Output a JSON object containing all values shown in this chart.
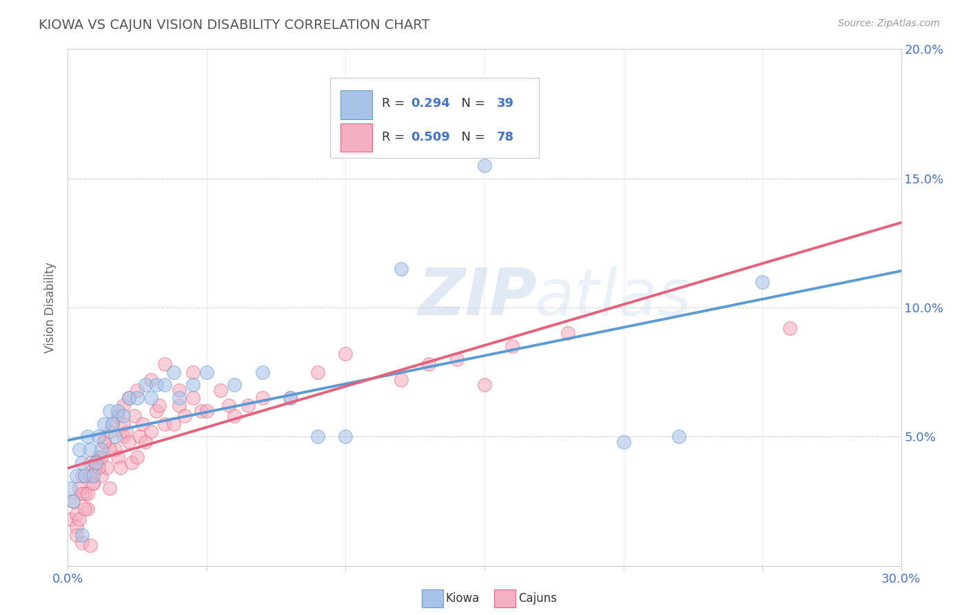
{
  "title": "KIOWA VS CAJUN VISION DISABILITY CORRELATION CHART",
  "source": "Source: ZipAtlas.com",
  "ylabel": "Vision Disability",
  "xlim": [
    0.0,
    0.3
  ],
  "ylim": [
    0.0,
    0.2
  ],
  "xticks": [
    0.0,
    0.05,
    0.1,
    0.15,
    0.2,
    0.25,
    0.3
  ],
  "yticks": [
    0.0,
    0.05,
    0.1,
    0.15,
    0.2
  ],
  "xticklabels": [
    "0.0%",
    "",
    "",
    "",
    "",
    "",
    "30.0%"
  ],
  "yticklabels_right": [
    "",
    "5.0%",
    "10.0%",
    "15.0%",
    "20.0%"
  ],
  "kiowa_color": "#aac4e8",
  "cajun_color": "#f5afc0",
  "kiowa_line_color": "#5b9bd5",
  "cajun_line_color": "#e8607a",
  "kiowa_R": 0.294,
  "kiowa_N": 39,
  "cajun_R": 0.509,
  "cajun_N": 78,
  "legend_R_color": "#4472c4",
  "background_color": "#ffffff",
  "watermark_zip": "ZIP",
  "watermark_atlas": "atlas",
  "kiowa_x": [
    0.001,
    0.002,
    0.003,
    0.004,
    0.005,
    0.006,
    0.007,
    0.008,
    0.009,
    0.01,
    0.011,
    0.012,
    0.013,
    0.015,
    0.016,
    0.017,
    0.018,
    0.02,
    0.022,
    0.025,
    0.028,
    0.03,
    0.032,
    0.035,
    0.038,
    0.04,
    0.045,
    0.05,
    0.06,
    0.07,
    0.08,
    0.09,
    0.1,
    0.12,
    0.15,
    0.2,
    0.22,
    0.25,
    0.005
  ],
  "kiowa_y": [
    0.03,
    0.025,
    0.035,
    0.045,
    0.04,
    0.035,
    0.05,
    0.045,
    0.035,
    0.04,
    0.05,
    0.045,
    0.055,
    0.06,
    0.055,
    0.05,
    0.06,
    0.058,
    0.065,
    0.065,
    0.07,
    0.065,
    0.07,
    0.07,
    0.075,
    0.065,
    0.07,
    0.075,
    0.07,
    0.075,
    0.065,
    0.05,
    0.05,
    0.115,
    0.155,
    0.048,
    0.05,
    0.11,
    0.012
  ],
  "cajun_x": [
    0.001,
    0.002,
    0.003,
    0.004,
    0.005,
    0.006,
    0.007,
    0.008,
    0.009,
    0.01,
    0.011,
    0.012,
    0.013,
    0.014,
    0.015,
    0.016,
    0.017,
    0.018,
    0.019,
    0.02,
    0.021,
    0.022,
    0.023,
    0.024,
    0.025,
    0.026,
    0.027,
    0.028,
    0.03,
    0.032,
    0.033,
    0.035,
    0.038,
    0.04,
    0.042,
    0.045,
    0.048,
    0.05,
    0.055,
    0.058,
    0.06,
    0.065,
    0.07,
    0.08,
    0.1,
    0.12,
    0.13,
    0.14,
    0.15,
    0.16,
    0.003,
    0.005,
    0.008,
    0.01,
    0.015,
    0.02,
    0.003,
    0.004,
    0.006,
    0.007,
    0.009,
    0.011,
    0.012,
    0.013,
    0.015,
    0.018,
    0.02,
    0.022,
    0.025,
    0.03,
    0.035,
    0.04,
    0.045,
    0.09,
    0.18,
    0.26,
    0.005,
    0.008
  ],
  "cajun_y": [
    0.018,
    0.025,
    0.02,
    0.03,
    0.035,
    0.028,
    0.022,
    0.04,
    0.032,
    0.038,
    0.042,
    0.035,
    0.048,
    0.038,
    0.03,
    0.055,
    0.045,
    0.042,
    0.038,
    0.05,
    0.052,
    0.048,
    0.04,
    0.058,
    0.042,
    0.05,
    0.055,
    0.048,
    0.052,
    0.06,
    0.062,
    0.055,
    0.055,
    0.062,
    0.058,
    0.065,
    0.06,
    0.06,
    0.068,
    0.062,
    0.058,
    0.062,
    0.065,
    0.065,
    0.082,
    0.072,
    0.078,
    0.08,
    0.07,
    0.085,
    0.015,
    0.028,
    0.035,
    0.04,
    0.045,
    0.055,
    0.012,
    0.018,
    0.022,
    0.028,
    0.032,
    0.038,
    0.042,
    0.048,
    0.052,
    0.058,
    0.062,
    0.065,
    0.068,
    0.072,
    0.078,
    0.068,
    0.075,
    0.075,
    0.09,
    0.092,
    0.009,
    0.008
  ]
}
